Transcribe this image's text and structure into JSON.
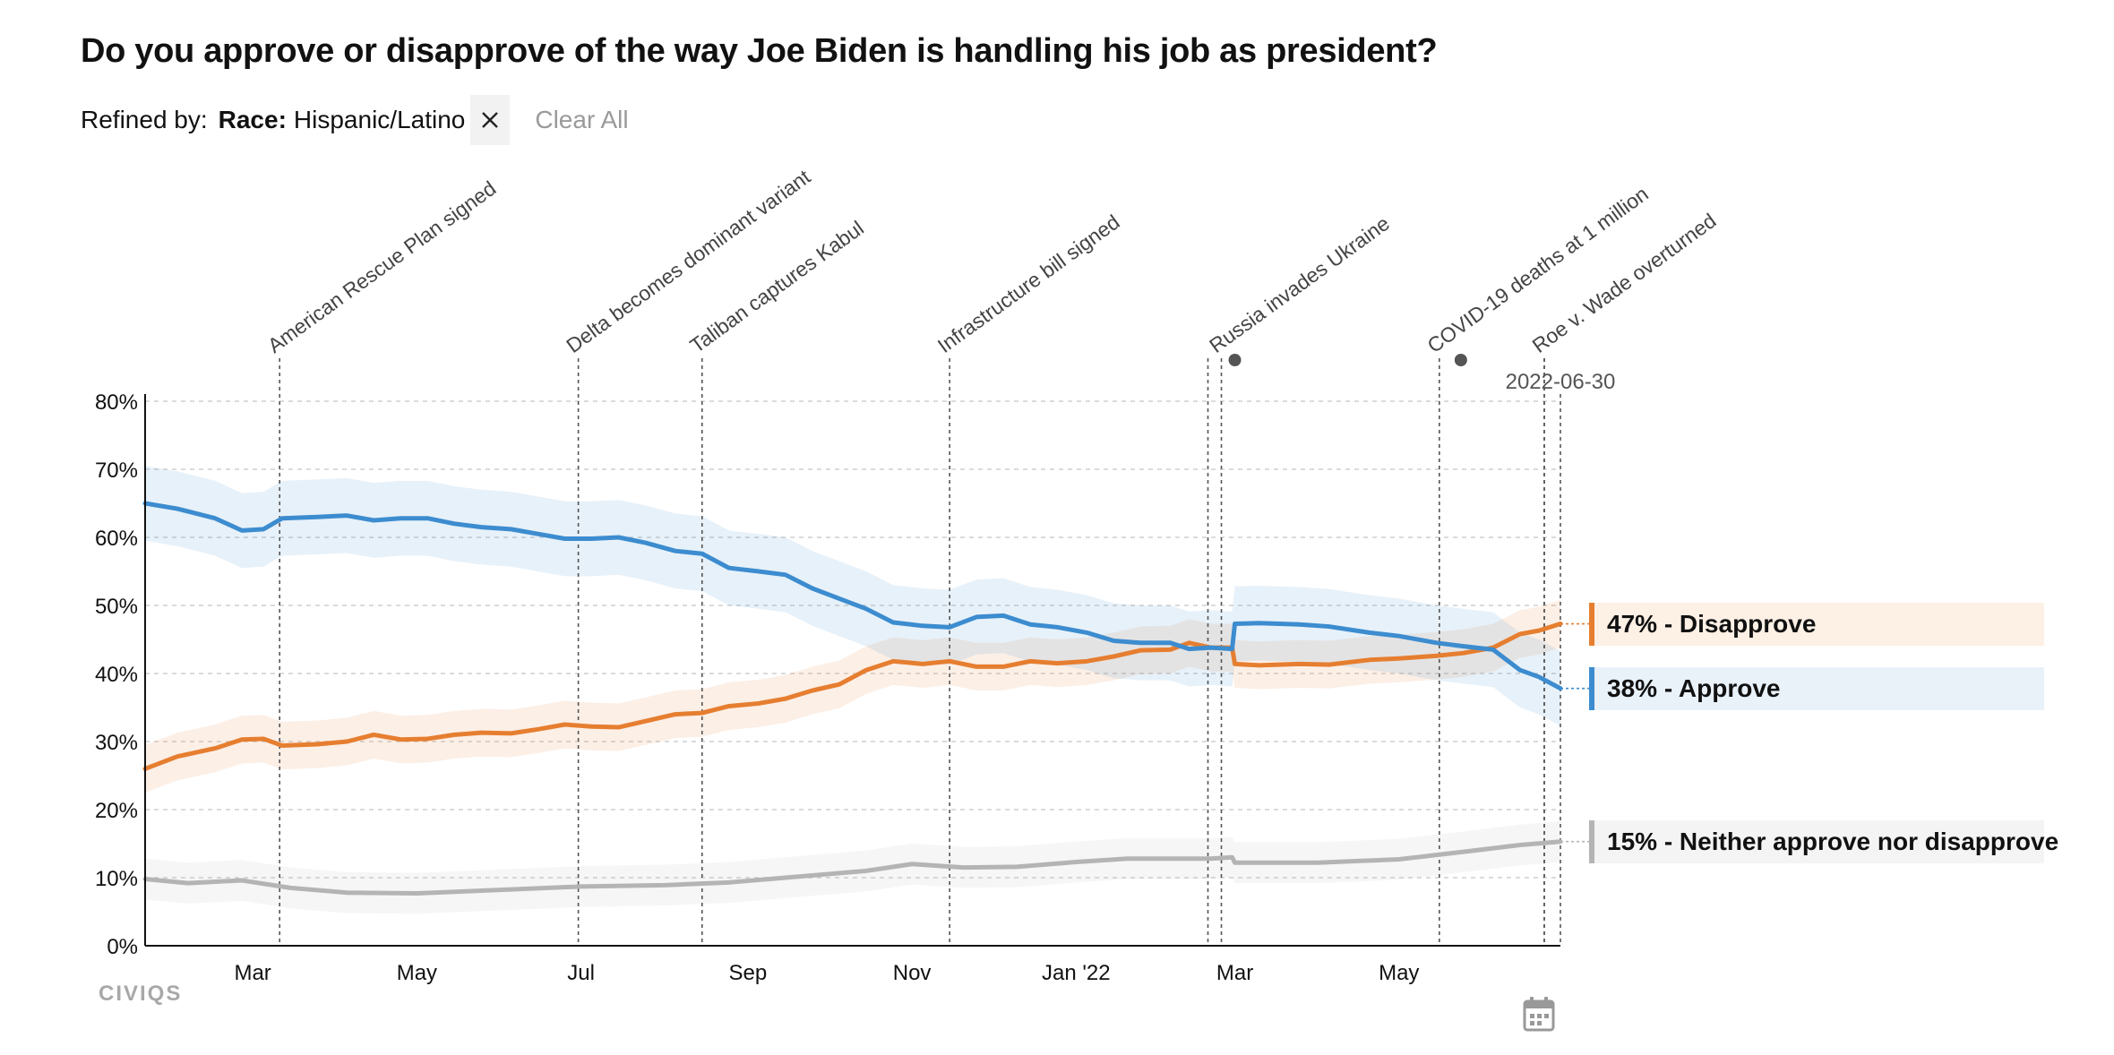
{
  "title": "Do you approve or disapprove of the way Joe Biden is handling his job as president?",
  "filters": {
    "refined_label": "Refined by:",
    "chip_key": "Race:",
    "chip_value": "Hispanic/Latino",
    "remove_icon": "close-icon",
    "clear_all": "Clear All"
  },
  "brand": {
    "logo_text": "CIVIQS"
  },
  "controls": {
    "calendar_icon": "calendar-icon"
  },
  "chart_data": {
    "type": "line",
    "title": "Do you approve or disapprove of the way Joe Biden is handling his job as president?",
    "xlabel": "",
    "ylabel": "",
    "ylim": [
      0,
      80
    ],
    "xlim": [
      "2021-01-20",
      "2022-06-30"
    ],
    "yticks": [
      "0%",
      "10%",
      "20%",
      "30%",
      "40%",
      "50%",
      "60%",
      "70%",
      "80%"
    ],
    "xticks": [
      {
        "date": "2021-03-01",
        "label": "Mar"
      },
      {
        "date": "2021-05-01",
        "label": "May"
      },
      {
        "date": "2021-07-01",
        "label": "Jul"
      },
      {
        "date": "2021-09-01",
        "label": "Sep"
      },
      {
        "date": "2021-11-01",
        "label": "Nov"
      },
      {
        "date": "2022-01-01",
        "label": "Jan '22"
      },
      {
        "date": "2022-03-01",
        "label": "Mar"
      },
      {
        "date": "2022-05-01",
        "label": "May"
      }
    ],
    "grid": true,
    "current_date_label": "2022-06-30",
    "colors": {
      "approve": "#3c8ccf",
      "disapprove": "#e67e30",
      "neither": "#b4b4b4"
    },
    "events": [
      {
        "date": "2021-03-11",
        "label": "American Rescue Plan signed"
      },
      {
        "date": "2021-06-30",
        "label": "Delta becomes dominant variant"
      },
      {
        "date": "2021-08-15",
        "label": "Taliban captures Kabul"
      },
      {
        "date": "2021-11-15",
        "label": "Infrastructure bill signed"
      },
      {
        "date": "2022-02-24",
        "label": "Russia invades Ukraine"
      },
      {
        "date": "2022-05-16",
        "label": "COVID-19 deaths at 1 million"
      },
      {
        "date": "2022-06-24",
        "label": "Roe v. Wade overturned"
      }
    ],
    "marker_dates": [
      "2022-03-01",
      "2022-05-24"
    ],
    "extra_lines": [
      "2022-02-19",
      "2022-06-24"
    ],
    "legend": [
      {
        "key": "disapprove",
        "label": "47% - Disapprove"
      },
      {
        "key": "approve",
        "label": "38% - Approve"
      },
      {
        "key": "neither",
        "label": "15% - Neither approve nor disapprove"
      }
    ],
    "series": [
      {
        "name": "Disapprove",
        "key": "disapprove",
        "band": 3.5,
        "points": [
          [
            "2021-01-20",
            26
          ],
          [
            "2021-02-01",
            27.8
          ],
          [
            "2021-02-15",
            29
          ],
          [
            "2021-02-25",
            30.3
          ],
          [
            "2021-03-05",
            30.4
          ],
          [
            "2021-03-12",
            29.4
          ],
          [
            "2021-03-25",
            29.6
          ],
          [
            "2021-04-05",
            30
          ],
          [
            "2021-04-15",
            31
          ],
          [
            "2021-04-25",
            30.3
          ],
          [
            "2021-05-05",
            30.4
          ],
          [
            "2021-05-15",
            31
          ],
          [
            "2021-05-25",
            31.3
          ],
          [
            "2021-06-05",
            31.2
          ],
          [
            "2021-06-15",
            31.8
          ],
          [
            "2021-06-25",
            32.5
          ],
          [
            "2021-07-05",
            32.2
          ],
          [
            "2021-07-15",
            32.1
          ],
          [
            "2021-07-25",
            33
          ],
          [
            "2021-08-05",
            34
          ],
          [
            "2021-08-15",
            34.2
          ],
          [
            "2021-08-25",
            35.2
          ],
          [
            "2021-09-05",
            35.6
          ],
          [
            "2021-09-15",
            36.3
          ],
          [
            "2021-09-25",
            37.5
          ],
          [
            "2021-10-05",
            38.4
          ],
          [
            "2021-10-15",
            40.5
          ],
          [
            "2021-10-25",
            41.8
          ],
          [
            "2021-11-05",
            41.4
          ],
          [
            "2021-11-15",
            41.8
          ],
          [
            "2021-11-25",
            41
          ],
          [
            "2021-12-05",
            41
          ],
          [
            "2021-12-15",
            41.8
          ],
          [
            "2021-12-25",
            41.5
          ],
          [
            "2022-01-05",
            41.8
          ],
          [
            "2022-01-15",
            42.5
          ],
          [
            "2022-01-25",
            43.4
          ],
          [
            "2022-02-05",
            43.5
          ],
          [
            "2022-02-12",
            44.5
          ],
          [
            "2022-02-20",
            43.8
          ],
          [
            "2022-02-28",
            43.8
          ],
          [
            "2022-03-01",
            41.4
          ],
          [
            "2022-03-10",
            41.2
          ],
          [
            "2022-03-25",
            41.4
          ],
          [
            "2022-04-05",
            41.3
          ],
          [
            "2022-04-20",
            42
          ],
          [
            "2022-05-01",
            42.2
          ],
          [
            "2022-05-15",
            42.6
          ],
          [
            "2022-05-25",
            43
          ],
          [
            "2022-06-05",
            43.8
          ],
          [
            "2022-06-15",
            45.8
          ],
          [
            "2022-06-22",
            46.3
          ],
          [
            "2022-06-30",
            47.3
          ]
        ]
      },
      {
        "name": "Approve",
        "key": "approve",
        "band": 5.5,
        "points": [
          [
            "2021-01-20",
            65
          ],
          [
            "2021-02-01",
            64.2
          ],
          [
            "2021-02-15",
            62.8
          ],
          [
            "2021-02-25",
            61
          ],
          [
            "2021-03-05",
            61.2
          ],
          [
            "2021-03-12",
            62.8
          ],
          [
            "2021-03-25",
            63
          ],
          [
            "2021-04-05",
            63.2
          ],
          [
            "2021-04-15",
            62.5
          ],
          [
            "2021-04-25",
            62.8
          ],
          [
            "2021-05-05",
            62.8
          ],
          [
            "2021-05-15",
            62
          ],
          [
            "2021-05-25",
            61.5
          ],
          [
            "2021-06-05",
            61.2
          ],
          [
            "2021-06-15",
            60.5
          ],
          [
            "2021-06-25",
            59.8
          ],
          [
            "2021-07-05",
            59.8
          ],
          [
            "2021-07-15",
            60
          ],
          [
            "2021-07-25",
            59.2
          ],
          [
            "2021-08-05",
            58
          ],
          [
            "2021-08-15",
            57.6
          ],
          [
            "2021-08-25",
            55.5
          ],
          [
            "2021-09-05",
            55
          ],
          [
            "2021-09-15",
            54.5
          ],
          [
            "2021-09-25",
            52.5
          ],
          [
            "2021-10-05",
            51
          ],
          [
            "2021-10-15",
            49.5
          ],
          [
            "2021-10-25",
            47.5
          ],
          [
            "2021-11-05",
            47
          ],
          [
            "2021-11-15",
            46.8
          ],
          [
            "2021-11-25",
            48.3
          ],
          [
            "2021-12-05",
            48.5
          ],
          [
            "2021-12-15",
            47.2
          ],
          [
            "2021-12-25",
            46.8
          ],
          [
            "2022-01-05",
            46
          ],
          [
            "2022-01-15",
            44.8
          ],
          [
            "2022-01-25",
            44.5
          ],
          [
            "2022-02-05",
            44.5
          ],
          [
            "2022-02-12",
            43.6
          ],
          [
            "2022-02-20",
            43.8
          ],
          [
            "2022-02-28",
            43.6
          ],
          [
            "2022-03-01",
            47.3
          ],
          [
            "2022-03-10",
            47.4
          ],
          [
            "2022-03-25",
            47.2
          ],
          [
            "2022-04-05",
            46.9
          ],
          [
            "2022-04-20",
            46
          ],
          [
            "2022-05-01",
            45.5
          ],
          [
            "2022-05-15",
            44.5
          ],
          [
            "2022-05-25",
            44
          ],
          [
            "2022-06-05",
            43.5
          ],
          [
            "2022-06-15",
            40.5
          ],
          [
            "2022-06-22",
            39.5
          ],
          [
            "2022-06-30",
            37.8
          ]
        ]
      },
      {
        "name": "Neither approve nor disapprove",
        "key": "neither",
        "band": 3,
        "points": [
          [
            "2021-01-20",
            9.8
          ],
          [
            "2021-02-05",
            9.2
          ],
          [
            "2021-02-25",
            9.6
          ],
          [
            "2021-03-15",
            8.5
          ],
          [
            "2021-04-05",
            7.8
          ],
          [
            "2021-05-01",
            7.7
          ],
          [
            "2021-06-01",
            8.2
          ],
          [
            "2021-07-01",
            8.7
          ],
          [
            "2021-08-01",
            8.9
          ],
          [
            "2021-08-25",
            9.3
          ],
          [
            "2021-09-15",
            10
          ],
          [
            "2021-10-15",
            11
          ],
          [
            "2021-11-01",
            12
          ],
          [
            "2021-11-20",
            11.5
          ],
          [
            "2021-12-10",
            11.6
          ],
          [
            "2022-01-01",
            12.3
          ],
          [
            "2022-01-20",
            12.8
          ],
          [
            "2022-02-20",
            12.8
          ],
          [
            "2022-02-28",
            13
          ],
          [
            "2022-03-01",
            12.2
          ],
          [
            "2022-04-01",
            12.2
          ],
          [
            "2022-05-01",
            12.7
          ],
          [
            "2022-05-25",
            13.8
          ],
          [
            "2022-06-15",
            14.8
          ],
          [
            "2022-06-30",
            15.3
          ]
        ]
      }
    ]
  }
}
